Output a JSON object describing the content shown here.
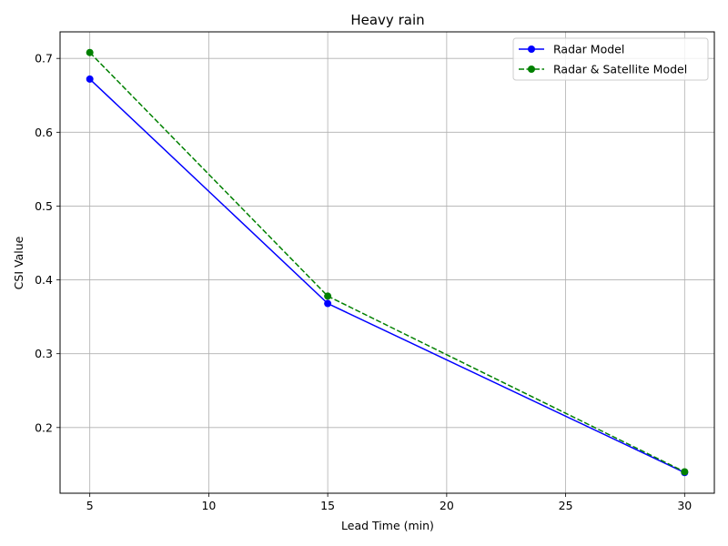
{
  "chart_data": {
    "type": "line",
    "title": "Heavy rain",
    "xlabel": "Lead Time (min)",
    "ylabel": "CSI Value",
    "x": [
      5,
      15,
      30
    ],
    "xlim": [
      3.75,
      31.25
    ],
    "ylim": [
      0.111,
      0.736
    ],
    "xticks": [
      5,
      10,
      15,
      20,
      25,
      30
    ],
    "yticks": [
      0.2,
      0.3,
      0.4,
      0.5,
      0.6,
      0.7
    ],
    "grid": true,
    "legend": "top-right",
    "series": [
      {
        "name": "Radar Model",
        "values": [
          0.672,
          0.368,
          0.139
        ],
        "color": "#0000ff",
        "dash": "solid",
        "marker": "circle"
      },
      {
        "name": "Radar & Satellite Model",
        "values": [
          0.708,
          0.378,
          0.14
        ],
        "color": "#008000",
        "dash": "dashed",
        "marker": "circle"
      }
    ]
  }
}
